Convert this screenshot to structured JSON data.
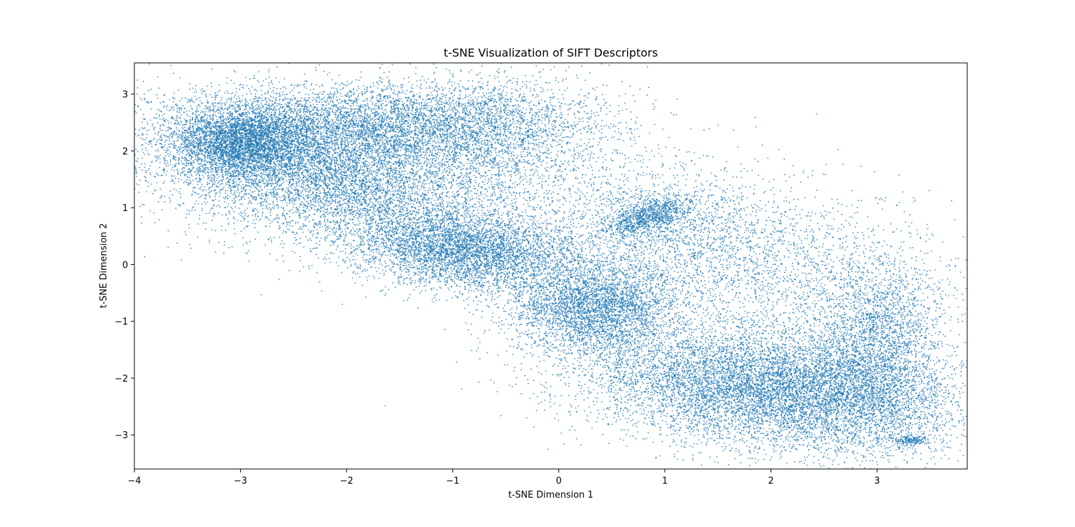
{
  "chart_data": {
    "type": "scatter",
    "title": "t-SNE Visualization of SIFT Descriptors",
    "xlabel": "t-SNE Dimension 1",
    "ylabel": "t-SNE Dimension 2",
    "xlim": [
      -4,
      3.85
    ],
    "ylim": [
      -3.6,
      3.55
    ],
    "xticks": [
      -4,
      -3,
      -2,
      -1,
      0,
      1,
      2,
      3
    ],
    "xtick_labels": [
      "−4",
      "−3",
      "−2",
      "−1",
      "0",
      "1",
      "2",
      "3"
    ],
    "yticks": [
      -3,
      -2,
      -1,
      0,
      1,
      2,
      3
    ],
    "ytick_labels": [
      "−3",
      "−2",
      "−1",
      "0",
      "1",
      "2",
      "3"
    ],
    "grid": false,
    "legend": "none",
    "point_color": "#1f77b4",
    "point_alpha": 0.7,
    "clusters": [
      {
        "center": [
          -3.0,
          2.15
        ],
        "spread": [
          0.32,
          0.32
        ],
        "rotation_deg": -20,
        "count": 3500
      },
      {
        "center": [
          -2.2,
          1.6
        ],
        "spread": [
          0.85,
          0.55
        ],
        "rotation_deg": -25,
        "count": 7000
      },
      {
        "center": [
          -1.6,
          2.5
        ],
        "spread": [
          0.9,
          0.35
        ],
        "rotation_deg": 0,
        "count": 4000
      },
      {
        "center": [
          -0.6,
          2.2
        ],
        "spread": [
          0.6,
          0.6
        ],
        "rotation_deg": -30,
        "count": 1800
      },
      {
        "center": [
          -0.9,
          0.25
        ],
        "spread": [
          0.55,
          0.35
        ],
        "rotation_deg": -15,
        "count": 4500
      },
      {
        "center": [
          0.35,
          -0.75
        ],
        "spread": [
          0.4,
          0.42
        ],
        "rotation_deg": -20,
        "count": 3600
      },
      {
        "center": [
          0.85,
          0.85
        ],
        "spread": [
          0.25,
          0.12
        ],
        "rotation_deg": 40,
        "count": 900
      },
      {
        "center": [
          0.9,
          0.6
        ],
        "spread": [
          0.8,
          0.6
        ],
        "rotation_deg": -30,
        "count": 1500
      },
      {
        "center": [
          2.0,
          0.0
        ],
        "spread": [
          1.1,
          0.7
        ],
        "rotation_deg": -35,
        "count": 2200
      },
      {
        "center": [
          2.0,
          -2.2
        ],
        "spread": [
          0.9,
          0.5
        ],
        "rotation_deg": -15,
        "count": 9000
      },
      {
        "center": [
          3.0,
          -1.5
        ],
        "spread": [
          0.3,
          0.8
        ],
        "rotation_deg": 0,
        "count": 2500
      },
      {
        "center": [
          3.3,
          -3.1
        ],
        "spread": [
          0.08,
          0.04
        ],
        "rotation_deg": 0,
        "count": 150
      }
    ]
  }
}
